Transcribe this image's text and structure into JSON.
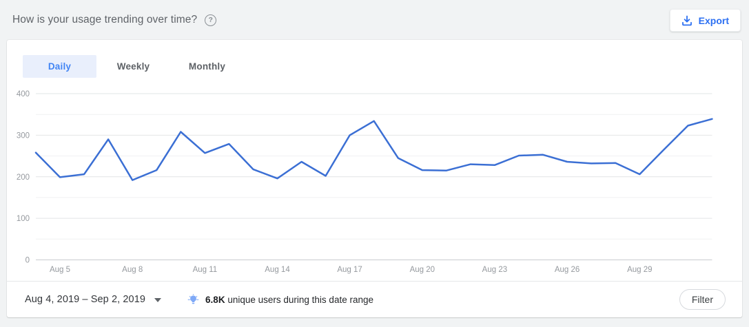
{
  "header": {
    "title": "How is your usage trending over time?",
    "export_label": "Export",
    "accent_color": "#2b6ff2"
  },
  "tabs": [
    {
      "label": "Daily",
      "active": true
    },
    {
      "label": "Weekly",
      "active": false
    },
    {
      "label": "Monthly",
      "active": false
    }
  ],
  "chart_data": {
    "type": "line",
    "title": "",
    "xlabel": "",
    "ylabel": "",
    "x": [
      "Aug 4",
      "Aug 5",
      "Aug 6",
      "Aug 7",
      "Aug 8",
      "Aug 9",
      "Aug 10",
      "Aug 11",
      "Aug 12",
      "Aug 13",
      "Aug 14",
      "Aug 15",
      "Aug 16",
      "Aug 17",
      "Aug 18",
      "Aug 19",
      "Aug 20",
      "Aug 21",
      "Aug 22",
      "Aug 23",
      "Aug 24",
      "Aug 25",
      "Aug 26",
      "Aug 27",
      "Aug 28",
      "Aug 29",
      "Aug 30",
      "Aug 31",
      "Sep 1"
    ],
    "values": [
      258,
      199,
      206,
      290,
      192,
      216,
      308,
      257,
      279,
      218,
      196,
      236,
      202,
      300,
      334,
      245,
      216,
      215,
      230,
      228,
      251,
      253,
      236,
      232,
      233,
      206,
      265,
      323,
      339
    ],
    "x_tick_labels": [
      "Aug 5",
      "Aug 8",
      "Aug 11",
      "Aug 14",
      "Aug 17",
      "Aug 20",
      "Aug 23",
      "Aug 26",
      "Aug 29"
    ],
    "x_tick_indices": [
      1,
      4,
      7,
      10,
      13,
      16,
      19,
      22,
      25
    ],
    "y_ticks": [
      0,
      100,
      200,
      300,
      400
    ],
    "ylim": [
      0,
      400
    ],
    "minor_grid_step": 50,
    "grid": "on",
    "legend": "none",
    "line_color": "#3b6fd4"
  },
  "footer": {
    "date_range": "Aug 4, 2019 – Sep 2, 2019",
    "insight_value": "6.8K",
    "insight_text": "unique users during this date range",
    "filter_label": "Filter"
  }
}
